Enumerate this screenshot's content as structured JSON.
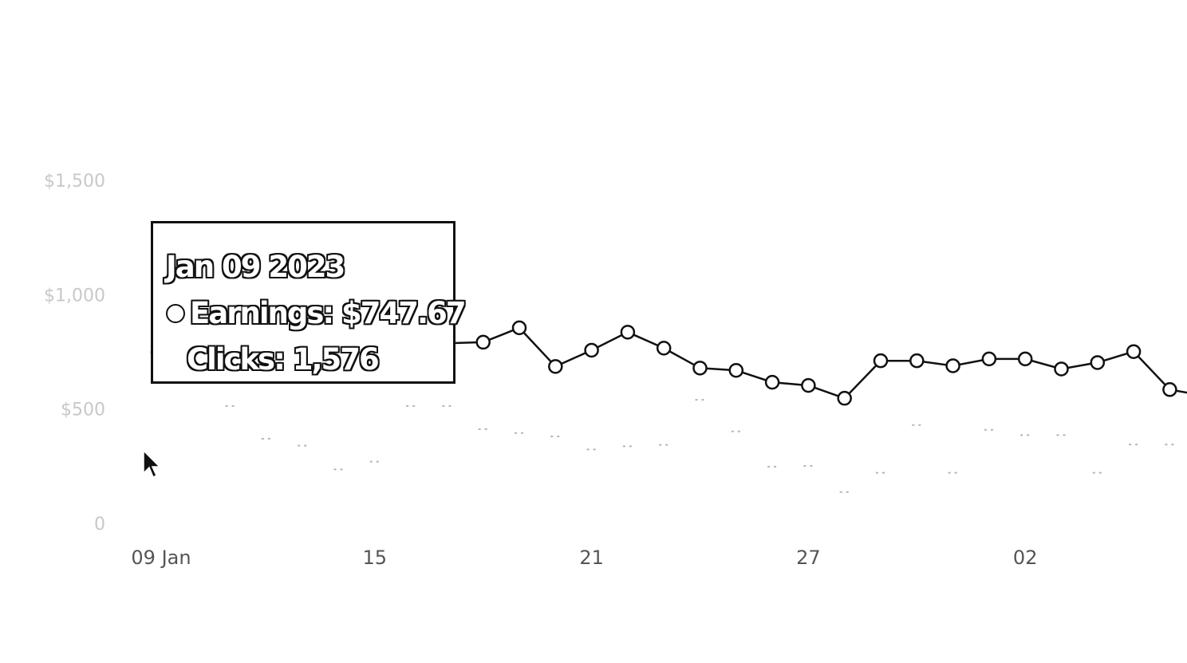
{
  "chart_data": {
    "type": "line",
    "x": [
      "Jan 09",
      "Jan 10",
      "Jan 11",
      "Jan 12",
      "Jan 13",
      "Jan 14",
      "Jan 15",
      "Jan 16",
      "Jan 17",
      "Jan 18",
      "Jan 19",
      "Jan 20",
      "Jan 21",
      "Jan 22",
      "Jan 23",
      "Jan 24",
      "Jan 25",
      "Jan 26",
      "Jan 27",
      "Jan 28",
      "Jan 29",
      "Jan 30",
      "Jan 31",
      "Feb 01",
      "Feb 02",
      "Feb 03",
      "Feb 04",
      "Feb 05",
      "Feb 06",
      "Feb 07"
    ],
    "x_tick_labels": [
      "09 Jan",
      "15",
      "21",
      "27",
      "02"
    ],
    "y_tick_labels": [
      "$1,500",
      "$1,000",
      "$500",
      "0"
    ],
    "ylim": [
      0,
      1500
    ],
    "series": [
      {
        "name": "Earnings",
        "values": [
          748,
          null,
          null,
          null,
          null,
          null,
          null,
          null,
          null,
          792,
          855,
          686,
          757,
          836,
          766,
          679,
          669,
          617,
          603,
          547,
          711,
          711,
          689,
          719,
          719,
          675,
          703,
          751,
          585,
          557
        ]
      },
      {
        "name": "Clicks",
        "values": [
          null,
          null,
          513,
          370,
          340,
          236,
          270,
          513,
          513,
          412,
          395,
          380,
          323,
          337,
          343,
          540,
          402,
          248,
          251,
          137,
          221,
          430,
          221,
          409,
          386,
          386,
          221,
          345,
          345,
          345
        ]
      }
    ],
    "legend": "none",
    "grid": false
  },
  "tooltip": {
    "date": "Jan 09 2023",
    "earnings_line": "Earnings: $747.67",
    "clicks_line": "Clicks: 1,576"
  }
}
